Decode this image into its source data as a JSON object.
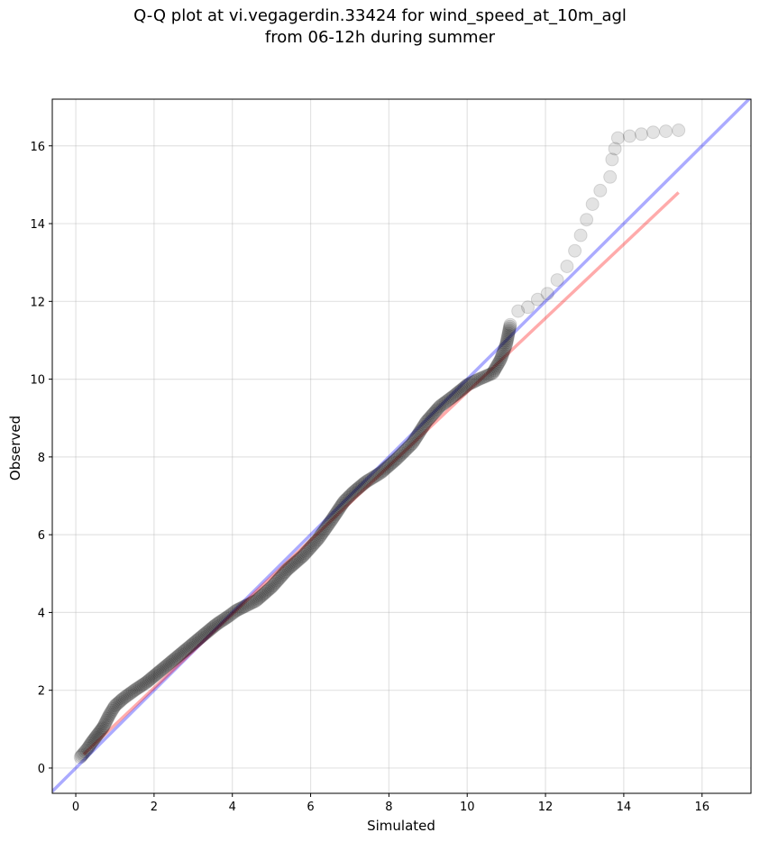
{
  "title": {
    "line1": "Q-Q plot at vi.vegagerdin.33424 for wind_speed_at_10m_agl",
    "line2": "from 06-12h during summer"
  },
  "chart_data": {
    "type": "scatter",
    "xlabel": "Simulated",
    "ylabel": "Observed",
    "xlim": [
      -0.6,
      17.25
    ],
    "ylim": [
      -0.65,
      17.2
    ],
    "xticks": [
      0,
      2,
      4,
      6,
      8,
      10,
      12,
      14,
      16
    ],
    "yticks": [
      0,
      2,
      4,
      6,
      8,
      10,
      12,
      14,
      16
    ],
    "grid": true,
    "colors": {
      "points": "#000000",
      "identity_line": "#0000ff",
      "fit_line": "#ff0000"
    },
    "quantile_curve": [
      [
        0.12,
        0.28
      ],
      [
        0.2,
        0.38
      ],
      [
        0.3,
        0.5
      ],
      [
        0.4,
        0.65
      ],
      [
        0.55,
        0.85
      ],
      [
        0.7,
        1.05
      ],
      [
        0.85,
        1.35
      ],
      [
        1.0,
        1.6
      ],
      [
        1.2,
        1.78
      ],
      [
        1.5,
        2.0
      ],
      [
        1.8,
        2.2
      ],
      [
        2.1,
        2.45
      ],
      [
        2.4,
        2.7
      ],
      [
        2.7,
        2.95
      ],
      [
        3.0,
        3.2
      ],
      [
        3.3,
        3.45
      ],
      [
        3.6,
        3.7
      ],
      [
        3.9,
        3.9
      ],
      [
        4.1,
        4.05
      ],
      [
        4.3,
        4.15
      ],
      [
        4.6,
        4.3
      ],
      [
        5.0,
        4.65
      ],
      [
        5.4,
        5.1
      ],
      [
        5.8,
        5.45
      ],
      [
        6.2,
        5.9
      ],
      [
        6.55,
        6.4
      ],
      [
        6.85,
        6.85
      ],
      [
        7.1,
        7.1
      ],
      [
        7.4,
        7.35
      ],
      [
        7.8,
        7.6
      ],
      [
        8.2,
        7.95
      ],
      [
        8.6,
        8.35
      ],
      [
        8.95,
        8.9
      ],
      [
        9.3,
        9.3
      ],
      [
        9.7,
        9.6
      ],
      [
        10.0,
        9.85
      ],
      [
        10.3,
        10.0
      ],
      [
        10.65,
        10.15
      ],
      [
        10.85,
        10.5
      ],
      [
        11.0,
        10.9
      ],
      [
        11.1,
        11.4
      ],
      [
        11.3,
        11.75
      ],
      [
        11.55,
        11.85
      ],
      [
        11.8,
        12.05
      ],
      [
        12.05,
        12.2
      ],
      [
        12.3,
        12.55
      ],
      [
        12.55,
        12.9
      ],
      [
        12.75,
        13.3
      ],
      [
        12.9,
        13.7
      ],
      [
        13.05,
        14.1
      ],
      [
        13.2,
        14.5
      ],
      [
        13.4,
        14.85
      ],
      [
        13.65,
        15.2
      ],
      [
        13.7,
        15.65
      ],
      [
        13.85,
        16.2
      ],
      [
        14.75,
        16.35
      ],
      [
        15.4,
        16.4
      ]
    ],
    "reference_lines": [
      {
        "name": "",
        "color": "#0000ff",
        "x": [
          -0.6,
          17.25
        ],
        "y": [
          -0.6,
          17.25
        ]
      },
      {
        "name": "",
        "color": "#ff0000",
        "x": [
          0.2,
          15.4
        ],
        "y": [
          0.35,
          14.8
        ]
      }
    ]
  }
}
